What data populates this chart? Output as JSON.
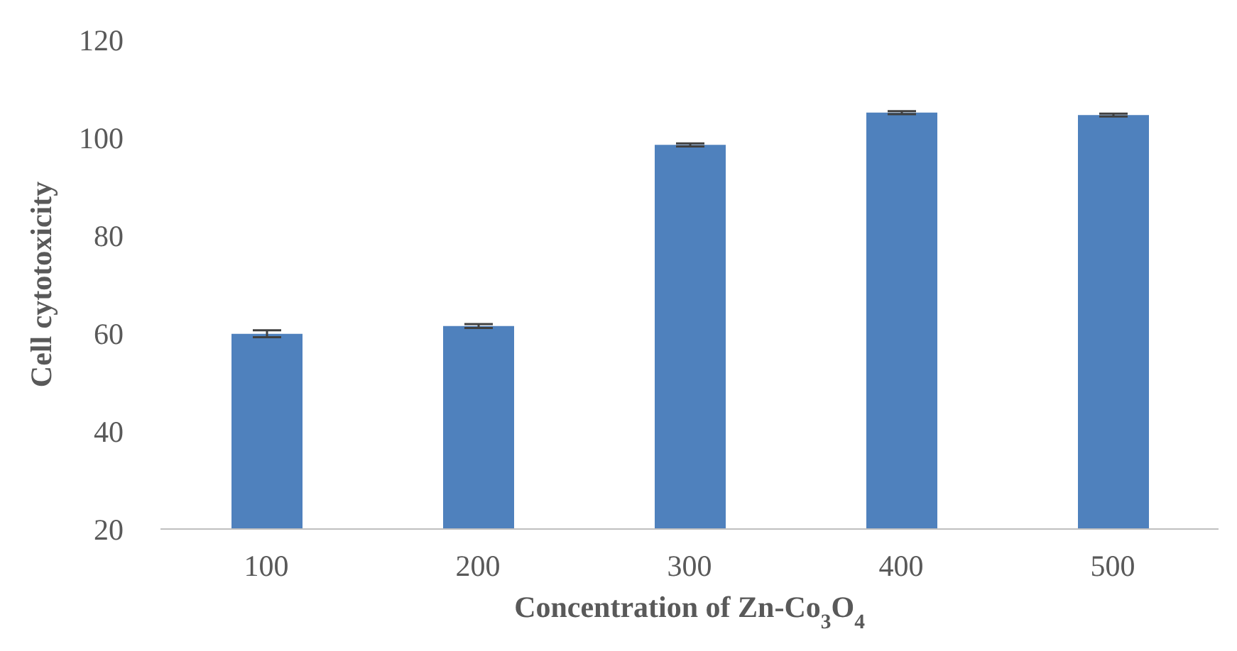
{
  "chart_data": {
    "type": "bar",
    "xlabel": "Concentration of Zn-Co$_{3}$O$_{4}$",
    "ylabel": "Cell cytotoxicity",
    "categories": [
      "100",
      "200",
      "300",
      "400",
      "500"
    ],
    "values": [
      59.9,
      61.5,
      98.5,
      105.1,
      104.6
    ],
    "errors": [
      0.7,
      0.4,
      0.3,
      0.3,
      0.3
    ],
    "color": "#4f81bd",
    "ylim": [
      20,
      120
    ],
    "yticks": [
      20,
      40,
      60,
      80,
      100,
      120
    ],
    "grid": false,
    "legend": false
  }
}
